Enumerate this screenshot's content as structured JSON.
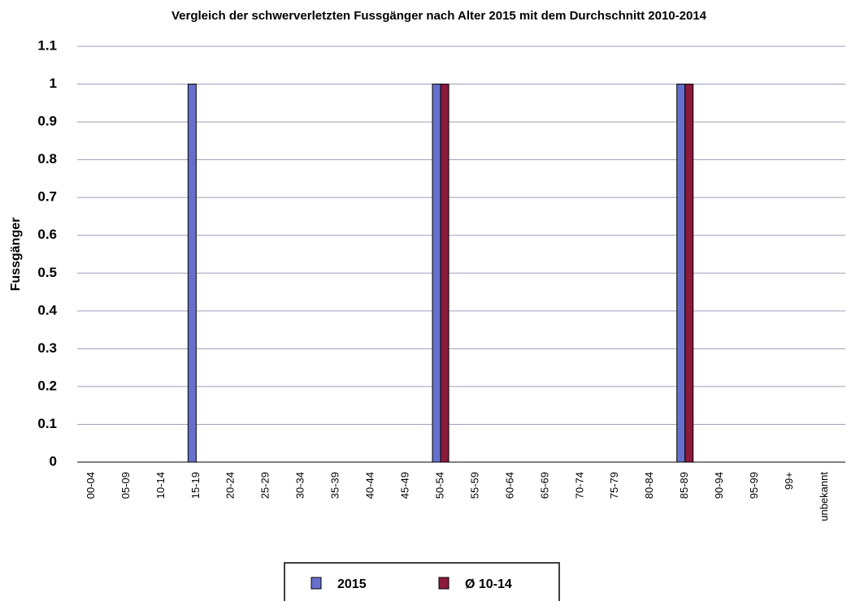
{
  "chart_data": {
    "type": "bar",
    "title": "Vergleich der schwerverletzten Fussgänger nach Alter 2015 mit dem Durchschnitt 2010-2014",
    "y_label": "Fussgänger",
    "categories": [
      "00-04",
      "05-09",
      "10-14",
      "15-19",
      "20-24",
      "25-29",
      "30-34",
      "35-39",
      "40-44",
      "45-49",
      "50-54",
      "55-59",
      "60-64",
      "65-69",
      "70-74",
      "75-79",
      "80-84",
      "85-89",
      "90-94",
      "95-99",
      "99+",
      "unbekannt"
    ],
    "series": [
      {
        "name": "2015",
        "color": "#6670cc",
        "values": [
          0,
          0,
          0,
          1,
          0,
          0,
          0,
          0,
          0,
          0,
          1,
          0,
          0,
          0,
          0,
          0,
          0,
          1,
          0,
          0,
          0,
          0
        ]
      },
      {
        "name": "Ø 10-14",
        "color": "#8b1a3c",
        "values": [
          0,
          0,
          0,
          0,
          0,
          0,
          0,
          0,
          0,
          0,
          1,
          0,
          0,
          0,
          0,
          0,
          0,
          1,
          0,
          0,
          0,
          0
        ]
      }
    ],
    "ylim": [
      0,
      1.1
    ],
    "yticks": [
      0,
      0.1,
      0.2,
      0.3,
      0.4,
      0.5,
      0.6,
      0.7,
      0.8,
      0.9,
      1,
      1.1
    ],
    "grid": true,
    "legend": "bottom"
  }
}
